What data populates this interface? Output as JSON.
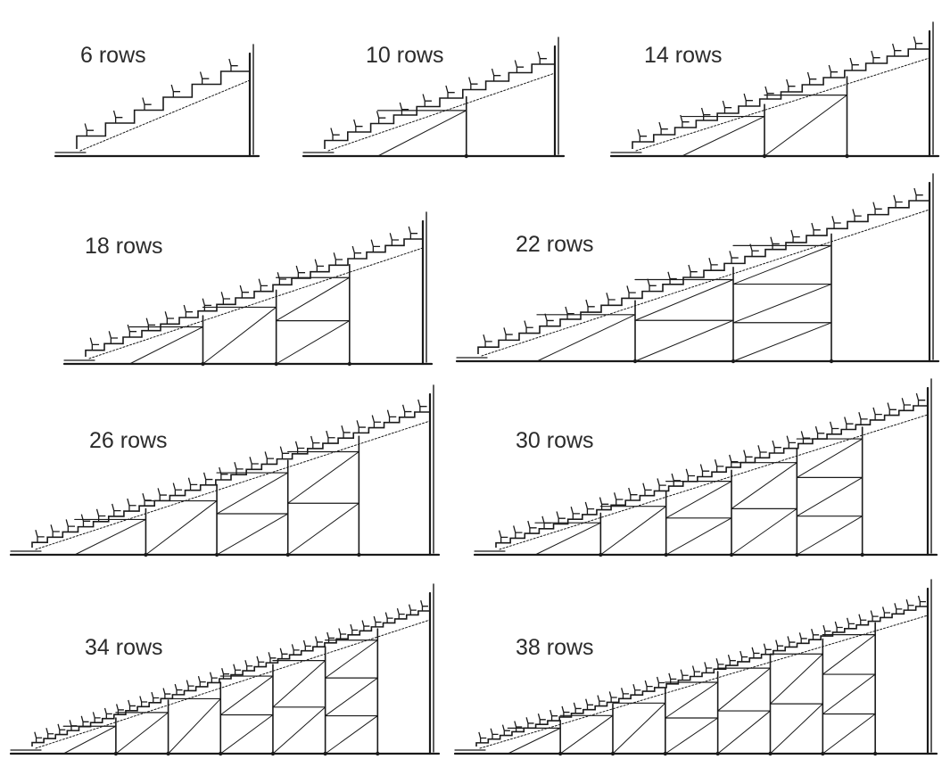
{
  "panels": [
    {
      "label": "6 rows",
      "rows": 6
    },
    {
      "label": "10 rows",
      "rows": 10
    },
    {
      "label": "14 rows",
      "rows": 14
    },
    {
      "label": "18 rows",
      "rows": 18
    },
    {
      "label": "22 rows",
      "rows": 22
    },
    {
      "label": "26 rows",
      "rows": 26
    },
    {
      "label": "30 rows",
      "rows": 30
    },
    {
      "label": "34 rows",
      "rows": 34
    },
    {
      "label": "38 rows",
      "rows": 38
    }
  ],
  "colors": {
    "line": "#1a1a1a",
    "thin": "#555555",
    "background": "#ffffff"
  }
}
